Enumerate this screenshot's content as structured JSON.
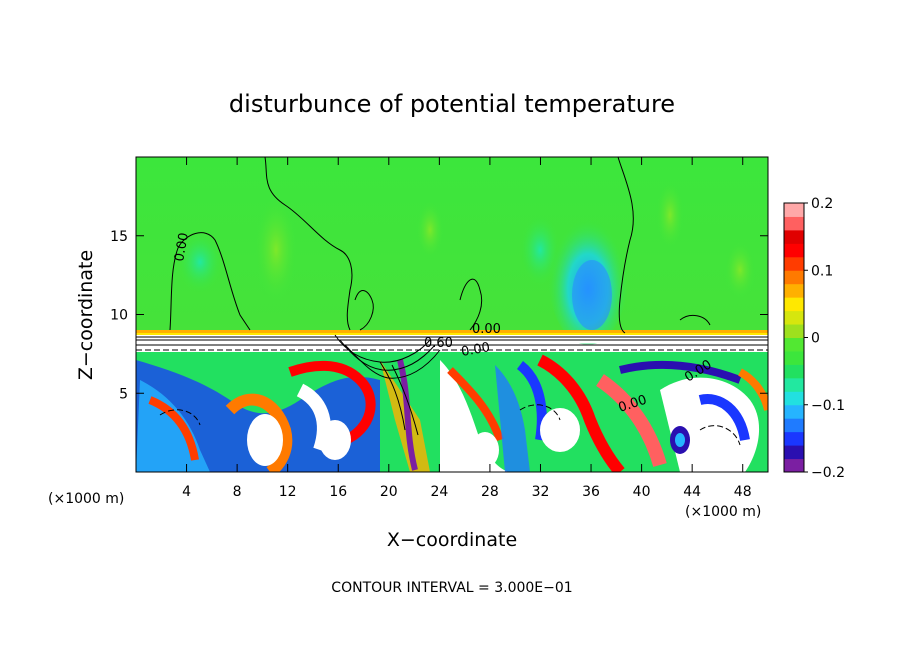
{
  "chart_data": {
    "type": "heatmap",
    "title": "disturbunce of potential temperature",
    "xlabel": "X−coordinate",
    "ylabel": "Z−coordinate",
    "x_unit": "(×1000 m)",
    "z_unit": "(×1000 m)",
    "xlim": [
      0,
      50
    ],
    "ylim": [
      0,
      20
    ],
    "x_ticks": [
      4,
      8,
      12,
      16,
      20,
      24,
      28,
      32,
      36,
      40,
      44,
      48
    ],
    "y_ticks": [
      5,
      10,
      15
    ],
    "colorbar": {
      "range": [
        -0.2,
        0.2
      ],
      "ticks": [
        0.2,
        0.1,
        0,
        -0.1,
        -0.2
      ],
      "tick_labels": [
        "0.2",
        "0.1",
        "0",
        "−0.1",
        "−0.2"
      ],
      "colors": [
        "#7b1fa2",
        "#2a0fb0",
        "#1a37ff",
        "#1f7bff",
        "#26b4ff",
        "#22e0e0",
        "#22e8a0",
        "#22e060",
        "#3ce63c",
        "#52e832",
        "#9ee01e",
        "#d6e60e",
        "#ffe800",
        "#ffb000",
        "#ff7a00",
        "#ff3c00",
        "#ff0000",
        "#e00000",
        "#ff6060",
        "#ffa8a8"
      ]
    },
    "contour_interval_text": "CONTOUR INTERVAL = 3.000E−01",
    "contour_labels": [
      "0.00",
      "0.00",
      "0.60",
      "0.00",
      "0.00",
      "0.00"
    ],
    "notes": {
      "upper_field_value": 0.0,
      "inversion_height": 8.8
    }
  }
}
